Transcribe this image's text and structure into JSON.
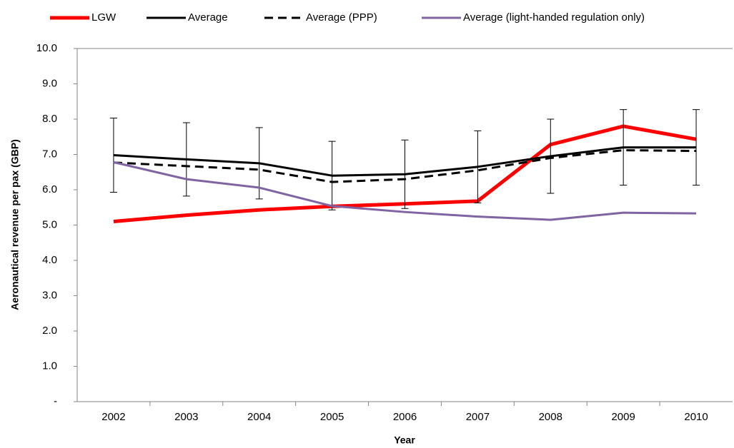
{
  "chart_data": {
    "type": "line",
    "x_label": "Year",
    "y_label": "Aeronautical revenue per pax (GBP)",
    "categories": [
      "2002",
      "2003",
      "2004",
      "2005",
      "2006",
      "2007",
      "2008",
      "2009",
      "2010"
    ],
    "series": [
      {
        "name": "LGW",
        "color": "#ff0000",
        "line_width": 5,
        "dash": false,
        "values": [
          5.1,
          5.28,
          5.43,
          5.53,
          5.6,
          5.68,
          7.28,
          7.8,
          7.43
        ]
      },
      {
        "name": "Average",
        "color": "#000000",
        "line_width": 3,
        "dash": false,
        "values": [
          6.98,
          6.86,
          6.75,
          6.4,
          6.44,
          6.65,
          6.95,
          7.2,
          7.2
        ],
        "errors": [
          1.05,
          1.04,
          1.01,
          0.97,
          0.97,
          1.02,
          1.05,
          1.07,
          1.07
        ]
      },
      {
        "name": "Average (PPP)",
        "color": "#000000",
        "line_width": 3,
        "dash": true,
        "values": [
          6.77,
          6.67,
          6.57,
          6.22,
          6.3,
          6.55,
          6.9,
          7.12,
          7.1
        ]
      },
      {
        "name": "Average (light-handed regulation only)",
        "color": "#8064a2",
        "line_width": 3,
        "dash": false,
        "values": [
          6.78,
          6.3,
          6.06,
          5.54,
          5.37,
          5.24,
          5.15,
          5.35,
          5.33
        ]
      }
    ],
    "ylim": [
      0,
      10
    ],
    "yticks": [
      {
        "value": 0,
        "label": "-"
      },
      {
        "value": 1,
        "label": "1.0"
      },
      {
        "value": 2,
        "label": "2.0"
      },
      {
        "value": 3,
        "label": "3.0"
      },
      {
        "value": 4,
        "label": "4.0"
      },
      {
        "value": 5,
        "label": "5.0"
      },
      {
        "value": 6,
        "label": "6.0"
      },
      {
        "value": 7,
        "label": "7.0"
      },
      {
        "value": 8,
        "label": "8.0"
      },
      {
        "value": 9,
        "label": "9.0"
      },
      {
        "value": 10,
        "label": "10.0"
      }
    ],
    "grid": false,
    "legend": "top"
  }
}
